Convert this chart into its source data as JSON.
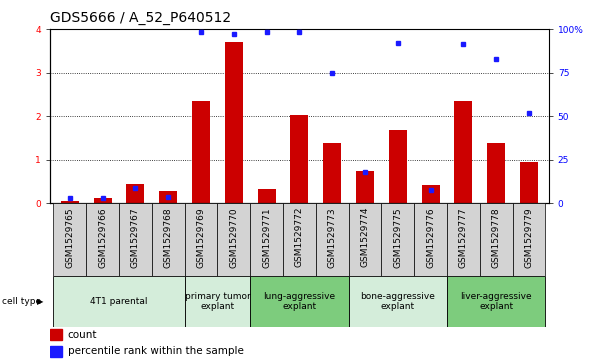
{
  "title": "GDS5666 / A_52_P640512",
  "samples": [
    "GSM1529765",
    "GSM1529766",
    "GSM1529767",
    "GSM1529768",
    "GSM1529769",
    "GSM1529770",
    "GSM1529771",
    "GSM1529772",
    "GSM1529773",
    "GSM1529774",
    "GSM1529775",
    "GSM1529776",
    "GSM1529777",
    "GSM1529778",
    "GSM1529779"
  ],
  "counts": [
    0.05,
    0.12,
    0.45,
    0.28,
    2.35,
    3.7,
    0.32,
    2.02,
    1.38,
    0.75,
    1.68,
    0.42,
    2.35,
    1.38,
    0.95
  ],
  "percentiles": [
    3.0,
    3.2,
    8.5,
    3.5,
    98.5,
    97.0,
    98.5,
    98.5,
    75.0,
    18.0,
    92.0,
    7.5,
    91.5,
    83.0,
    52.0
  ],
  "cell_types": [
    {
      "label": "4T1 parental",
      "start": 0,
      "end": 4,
      "color": "#d4edda"
    },
    {
      "label": "primary tumor\nexplant",
      "start": 4,
      "end": 6,
      "color": "#d4edda"
    },
    {
      "label": "lung-aggressive\nexplant",
      "start": 6,
      "end": 9,
      "color": "#7dcc7d"
    },
    {
      "label": "bone-aggressive\nexplant",
      "start": 9,
      "end": 12,
      "color": "#d4edda"
    },
    {
      "label": "liver-aggressive\nexplant",
      "start": 12,
      "end": 15,
      "color": "#7dcc7d"
    }
  ],
  "bar_color": "#cc0000",
  "dot_color": "#1a1aff",
  "ylim_left": [
    0,
    4
  ],
  "ylim_right": [
    0,
    100
  ],
  "yticks_left": [
    0,
    1,
    2,
    3,
    4
  ],
  "yticks_right": [
    0,
    25,
    50,
    75,
    100
  ],
  "yticklabels_right": [
    "0",
    "25",
    "50",
    "75",
    "100%"
  ],
  "title_fontsize": 10,
  "tick_fontsize": 6.5,
  "label_fontsize": 7.5
}
